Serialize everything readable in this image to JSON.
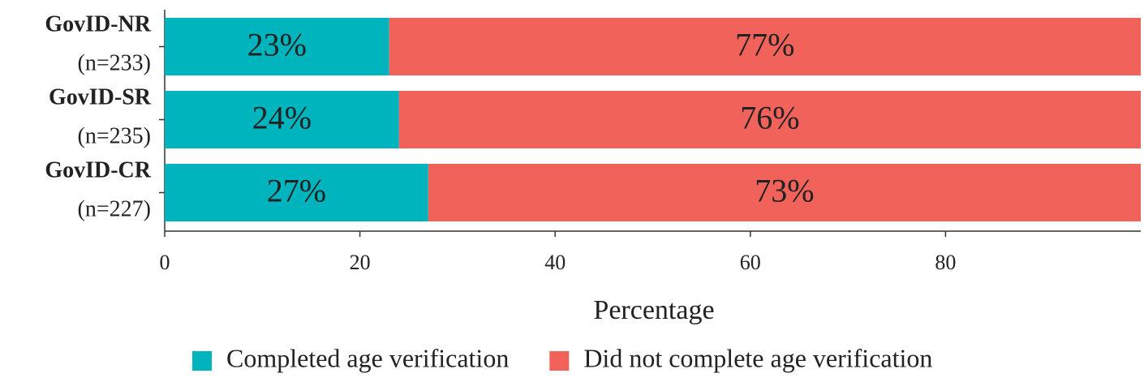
{
  "chart_data": {
    "type": "stacked_barh",
    "categories": [
      "GovID-NR",
      "GovID-SR",
      "GovID-CR"
    ],
    "category_notes": [
      "(n=233)",
      "(n=235)",
      "(n=227)"
    ],
    "series": [
      {
        "name": "Completed age verification",
        "color": "#00b4be",
        "values": [
          23,
          24,
          27
        ],
        "value_labels": [
          "23%",
          "24%",
          "27%"
        ]
      },
      {
        "name": "Did not complete age verification",
        "color": "#f0625a",
        "values": [
          77,
          76,
          73
        ],
        "value_labels": [
          "77%",
          "76%",
          "73%"
        ]
      }
    ],
    "xlabel": "Percentage",
    "xlim": [
      0,
      100
    ],
    "xticks": [
      0,
      20,
      40,
      60,
      80
    ],
    "legend": "bottom"
  }
}
